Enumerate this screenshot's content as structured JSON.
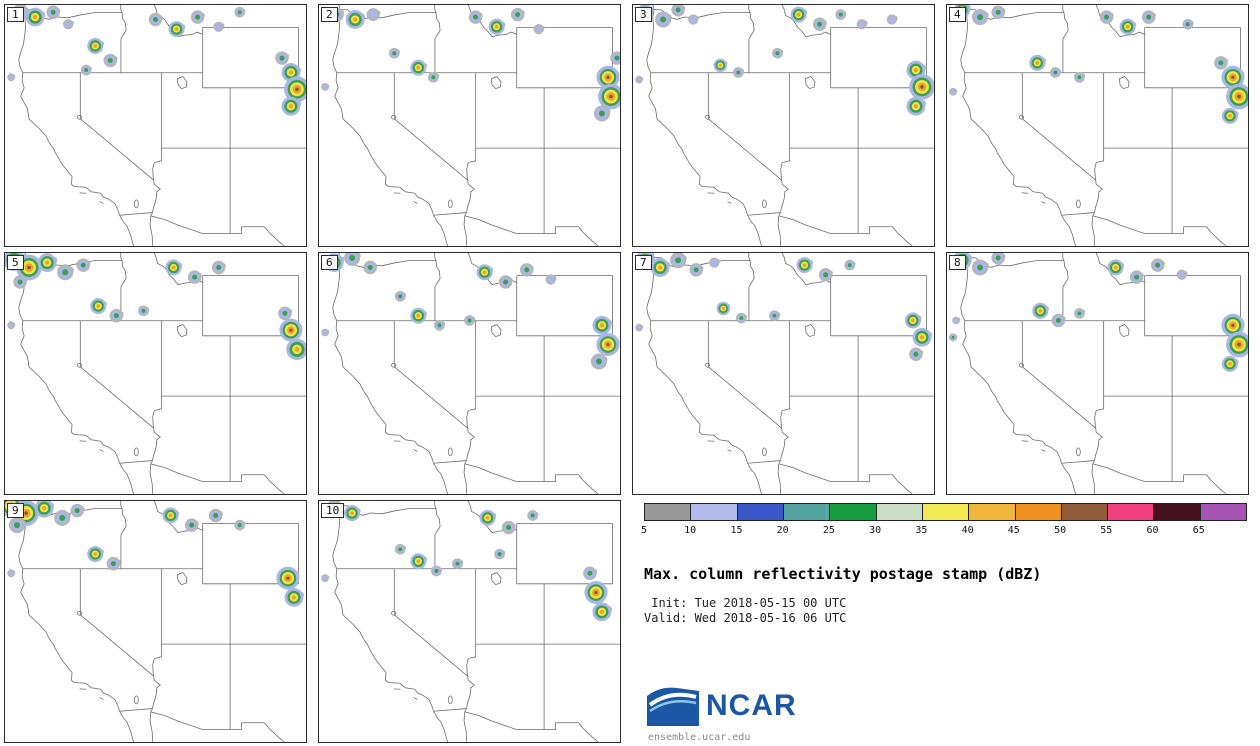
{
  "title": "Max. column reflectivity postage stamp (dBZ)",
  "init_line": " Init: Tue 2018-05-15 00 UTC",
  "valid_line": "Valid: Wed 2018-05-16 06 UTC",
  "logo": {
    "text": "NCAR",
    "url": "ensemble.ucar.edu"
  },
  "colorbar": {
    "ticks": [
      "5",
      "10",
      "15",
      "20",
      "25",
      "30",
      "35",
      "40",
      "45",
      "50",
      "55",
      "60",
      "65"
    ],
    "colors": [
      "#999999",
      "#b0bcec",
      "#3a57c9",
      "#55a6a0",
      "#169c3e",
      "#c9dec4",
      "#efe954",
      "#f0b73c",
      "#ee8f20",
      "#8f5b38",
      "#f04080",
      "#46101f",
      "#a553b5"
    ]
  },
  "chart_data": {
    "type": "heatmap",
    "title": "Max. column reflectivity postage stamp (dBZ)",
    "variable": "Max. column reflectivity",
    "units": "dBZ",
    "init": "Tue 2018-05-15 00 UTC",
    "valid": "Wed 2018-05-16 06 UTC",
    "legend_position": "bottom-right",
    "colorbar_ticks": [
      5,
      10,
      15,
      20,
      25,
      30,
      35,
      40,
      45,
      50,
      55,
      60,
      65
    ],
    "colorbar_colors": [
      "#999999",
      "#b0bcec",
      "#3a57c9",
      "#55a6a0",
      "#169c3e",
      "#c9dec4",
      "#efe954",
      "#f0b73c",
      "#ee8f20",
      "#8f5b38",
      "#f04080",
      "#46101f",
      "#a553b5"
    ],
    "echo_encoding": "x,y = fractional position in panel (0-1 from top-left), r = echo radius px, i = intensity class 1-4 (~10, 25, 40, 50 dBZ cores)",
    "members": [
      {
        "label": "1",
        "echoes": [
          [
            0.05,
            0.03,
            6,
            2
          ],
          [
            0.1,
            0.05,
            7,
            3
          ],
          [
            0.16,
            0.03,
            5,
            2
          ],
          [
            0.21,
            0.08,
            4,
            1
          ],
          [
            0.3,
            0.17,
            6,
            3
          ],
          [
            0.35,
            0.23,
            5,
            2
          ],
          [
            0.5,
            0.06,
            5,
            2
          ],
          [
            0.57,
            0.1,
            6,
            3
          ],
          [
            0.64,
            0.05,
            5,
            2
          ],
          [
            0.71,
            0.09,
            4,
            1
          ],
          [
            0.78,
            0.03,
            4,
            2
          ],
          [
            0.95,
            0.28,
            7,
            3
          ],
          [
            0.97,
            0.35,
            9,
            4
          ],
          [
            0.95,
            0.42,
            7,
            3
          ],
          [
            0.92,
            0.22,
            5,
            2
          ],
          [
            0.02,
            0.3,
            3,
            1
          ],
          [
            0.27,
            0.27,
            4,
            2
          ]
        ]
      },
      {
        "label": "2",
        "echoes": [
          [
            0.06,
            0.04,
            5,
            2
          ],
          [
            0.12,
            0.06,
            7,
            3
          ],
          [
            0.18,
            0.04,
            5,
            1
          ],
          [
            0.33,
            0.26,
            6,
            3
          ],
          [
            0.38,
            0.3,
            4,
            2
          ],
          [
            0.52,
            0.05,
            5,
            2
          ],
          [
            0.59,
            0.09,
            6,
            3
          ],
          [
            0.66,
            0.04,
            5,
            2
          ],
          [
            0.73,
            0.1,
            4,
            1
          ],
          [
            0.96,
            0.3,
            8,
            4
          ],
          [
            0.97,
            0.38,
            9,
            4
          ],
          [
            0.94,
            0.45,
            6,
            2
          ],
          [
            0.99,
            0.22,
            5,
            2
          ],
          [
            0.02,
            0.34,
            3,
            1
          ],
          [
            0.25,
            0.2,
            4,
            2
          ]
        ]
      },
      {
        "label": "3",
        "echoes": [
          [
            0.04,
            0.03,
            6,
            3
          ],
          [
            0.1,
            0.06,
            6,
            2
          ],
          [
            0.15,
            0.02,
            5,
            2
          ],
          [
            0.2,
            0.06,
            4,
            1
          ],
          [
            0.29,
            0.25,
            5,
            3
          ],
          [
            0.35,
            0.28,
            4,
            2
          ],
          [
            0.55,
            0.04,
            6,
            3
          ],
          [
            0.62,
            0.08,
            5,
            2
          ],
          [
            0.69,
            0.04,
            4,
            2
          ],
          [
            0.76,
            0.08,
            4,
            1
          ],
          [
            0.94,
            0.27,
            7,
            3
          ],
          [
            0.96,
            0.34,
            9,
            4
          ],
          [
            0.94,
            0.42,
            7,
            3
          ],
          [
            0.02,
            0.31,
            3,
            1
          ],
          [
            0.48,
            0.2,
            4,
            2
          ],
          [
            0.86,
            0.06,
            4,
            1
          ]
        ]
      },
      {
        "label": "4",
        "echoes": [
          [
            0.05,
            0.02,
            6,
            3
          ],
          [
            0.11,
            0.05,
            6,
            2
          ],
          [
            0.17,
            0.03,
            5,
            2
          ],
          [
            0.3,
            0.24,
            6,
            3
          ],
          [
            0.36,
            0.28,
            4,
            2
          ],
          [
            0.53,
            0.05,
            5,
            2
          ],
          [
            0.6,
            0.09,
            6,
            3
          ],
          [
            0.67,
            0.05,
            5,
            2
          ],
          [
            0.8,
            0.08,
            4,
            2
          ],
          [
            0.95,
            0.3,
            8,
            4
          ],
          [
            0.97,
            0.38,
            9,
            4
          ],
          [
            0.94,
            0.46,
            6,
            3
          ],
          [
            0.91,
            0.24,
            5,
            2
          ],
          [
            0.02,
            0.36,
            3,
            1
          ],
          [
            0.44,
            0.3,
            4,
            2
          ]
        ]
      },
      {
        "label": "5",
        "echoes": [
          [
            0.03,
            0.03,
            8,
            3
          ],
          [
            0.08,
            0.06,
            9,
            4
          ],
          [
            0.14,
            0.04,
            7,
            3
          ],
          [
            0.2,
            0.08,
            6,
            2
          ],
          [
            0.05,
            0.12,
            5,
            2
          ],
          [
            0.26,
            0.05,
            5,
            2
          ],
          [
            0.31,
            0.22,
            6,
            3
          ],
          [
            0.37,
            0.26,
            5,
            2
          ],
          [
            0.46,
            0.24,
            4,
            2
          ],
          [
            0.56,
            0.06,
            6,
            3
          ],
          [
            0.63,
            0.1,
            5,
            2
          ],
          [
            0.71,
            0.06,
            5,
            2
          ],
          [
            0.95,
            0.32,
            8,
            4
          ],
          [
            0.97,
            0.4,
            8,
            3
          ],
          [
            0.93,
            0.25,
            5,
            2
          ],
          [
            0.02,
            0.3,
            3,
            1
          ]
        ]
      },
      {
        "label": "6",
        "echoes": [
          [
            0.05,
            0.04,
            7,
            3
          ],
          [
            0.11,
            0.02,
            6,
            2
          ],
          [
            0.17,
            0.06,
            5,
            2
          ],
          [
            0.33,
            0.26,
            6,
            3
          ],
          [
            0.4,
            0.3,
            4,
            2
          ],
          [
            0.55,
            0.08,
            6,
            3
          ],
          [
            0.62,
            0.12,
            5,
            2
          ],
          [
            0.69,
            0.07,
            5,
            2
          ],
          [
            0.77,
            0.11,
            4,
            1
          ],
          [
            0.94,
            0.3,
            7,
            3
          ],
          [
            0.96,
            0.38,
            8,
            4
          ],
          [
            0.93,
            0.45,
            6,
            2
          ],
          [
            0.02,
            0.33,
            3,
            1
          ],
          [
            0.27,
            0.18,
            4,
            2
          ],
          [
            0.5,
            0.28,
            4,
            2
          ]
        ]
      },
      {
        "label": "7",
        "echoes": [
          [
            0.04,
            0.03,
            7,
            3
          ],
          [
            0.09,
            0.06,
            7,
            3
          ],
          [
            0.15,
            0.03,
            6,
            2
          ],
          [
            0.21,
            0.07,
            5,
            2
          ],
          [
            0.27,
            0.04,
            4,
            1
          ],
          [
            0.3,
            0.23,
            5,
            3
          ],
          [
            0.36,
            0.27,
            4,
            2
          ],
          [
            0.57,
            0.05,
            6,
            3
          ],
          [
            0.64,
            0.09,
            5,
            2
          ],
          [
            0.72,
            0.05,
            4,
            2
          ],
          [
            0.93,
            0.28,
            6,
            3
          ],
          [
            0.96,
            0.35,
            7,
            3
          ],
          [
            0.94,
            0.42,
            5,
            2
          ],
          [
            0.02,
            0.31,
            3,
            1
          ],
          [
            0.47,
            0.26,
            4,
            2
          ]
        ]
      },
      {
        "label": "8",
        "echoes": [
          [
            0.05,
            0.03,
            7,
            3
          ],
          [
            0.11,
            0.06,
            6,
            2
          ],
          [
            0.17,
            0.02,
            5,
            2
          ],
          [
            0.31,
            0.24,
            6,
            3
          ],
          [
            0.37,
            0.28,
            5,
            2
          ],
          [
            0.44,
            0.25,
            4,
            2
          ],
          [
            0.56,
            0.06,
            6,
            3
          ],
          [
            0.63,
            0.1,
            5,
            2
          ],
          [
            0.7,
            0.05,
            5,
            2
          ],
          [
            0.78,
            0.09,
            4,
            1
          ],
          [
            0.95,
            0.3,
            8,
            4
          ],
          [
            0.97,
            0.38,
            9,
            4
          ],
          [
            0.94,
            0.46,
            6,
            3
          ],
          [
            0.02,
            0.35,
            3,
            2
          ],
          [
            0.03,
            0.28,
            3,
            1
          ]
        ]
      },
      {
        "label": "9",
        "echoes": [
          [
            0.02,
            0.02,
            8,
            4
          ],
          [
            0.07,
            0.05,
            9,
            4
          ],
          [
            0.13,
            0.03,
            7,
            3
          ],
          [
            0.19,
            0.07,
            6,
            2
          ],
          [
            0.04,
            0.1,
            6,
            2
          ],
          [
            0.24,
            0.04,
            5,
            2
          ],
          [
            0.3,
            0.22,
            6,
            3
          ],
          [
            0.36,
            0.26,
            5,
            2
          ],
          [
            0.55,
            0.06,
            6,
            3
          ],
          [
            0.62,
            0.1,
            5,
            2
          ],
          [
            0.7,
            0.06,
            5,
            2
          ],
          [
            0.78,
            0.1,
            4,
            2
          ],
          [
            0.94,
            0.32,
            8,
            4
          ],
          [
            0.96,
            0.4,
            7,
            3
          ],
          [
            0.02,
            0.3,
            3,
            1
          ]
        ]
      },
      {
        "label": "10",
        "echoes": [
          [
            0.05,
            0.03,
            6,
            2
          ],
          [
            0.11,
            0.05,
            6,
            3
          ],
          [
            0.33,
            0.25,
            6,
            3
          ],
          [
            0.39,
            0.29,
            4,
            2
          ],
          [
            0.46,
            0.26,
            4,
            2
          ],
          [
            0.56,
            0.07,
            6,
            3
          ],
          [
            0.63,
            0.11,
            5,
            2
          ],
          [
            0.71,
            0.06,
            4,
            2
          ],
          [
            0.92,
            0.38,
            8,
            4
          ],
          [
            0.94,
            0.46,
            7,
            3
          ],
          [
            0.9,
            0.3,
            5,
            2
          ],
          [
            0.02,
            0.32,
            3,
            1
          ],
          [
            0.27,
            0.2,
            4,
            2
          ],
          [
            0.6,
            0.22,
            4,
            2
          ]
        ]
      }
    ]
  }
}
